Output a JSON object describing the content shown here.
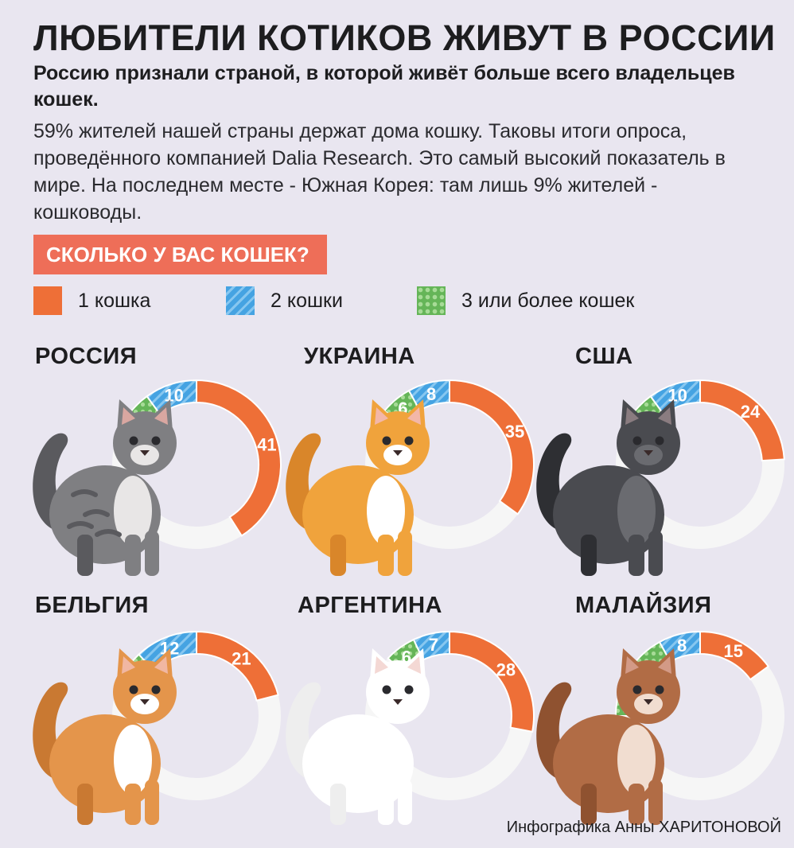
{
  "title": "ЛЮБИТЕЛИ КОТИКОВ ЖИВУТ В РОССИИ",
  "subtitle": "Россию признали страной, в которой живёт больше всего владельцев кошек.",
  "body": "59% жителей нашей страны держат дома кошку. Таковы итоги опроса, проведённого компанией Dalia Research. Это самый высокий показатель в мире. На последнем месте - Южная Корея: там лишь 9% жителей - кошководы.",
  "question": "СКОЛЬКО У ВАС КОШЕК?",
  "legend": [
    {
      "label": "1 кошка",
      "color": "#ee6f37"
    },
    {
      "label": "2 кошки",
      "color": "#45a3e2"
    },
    {
      "label": "3 или более кошек",
      "color": "#65b558"
    }
  ],
  "credit": "Инфографика Анны ХАРИТОНОВОЙ",
  "colors": {
    "background": "#e9e6f0",
    "ring": "#f6f6f6",
    "accent": "#ee6e58"
  },
  "chart_data": {
    "type": "pie",
    "series_names": [
      "1 кошка",
      "2 кошки",
      "3 или более кошек"
    ],
    "countries": [
      {
        "name": "РОССИЯ",
        "values": [
          41,
          10,
          8
        ],
        "cat": "tabby"
      },
      {
        "name": "УКРАИНА",
        "values": [
          35,
          8,
          6
        ],
        "cat": "ginger"
      },
      {
        "name": "США",
        "values": [
          24,
          10,
          9
        ],
        "cat": "black"
      },
      {
        "name": "БЕЛЬГИЯ",
        "values": [
          21,
          12,
          9
        ],
        "cat": "orange"
      },
      {
        "name": "АРГЕНТИНА",
        "values": [
          28,
          7,
          6
        ],
        "cat": "white"
      },
      {
        "name": "МАЛАЙЗИЯ",
        "values": [
          15,
          8,
          17
        ],
        "cat": "brown"
      }
    ]
  }
}
